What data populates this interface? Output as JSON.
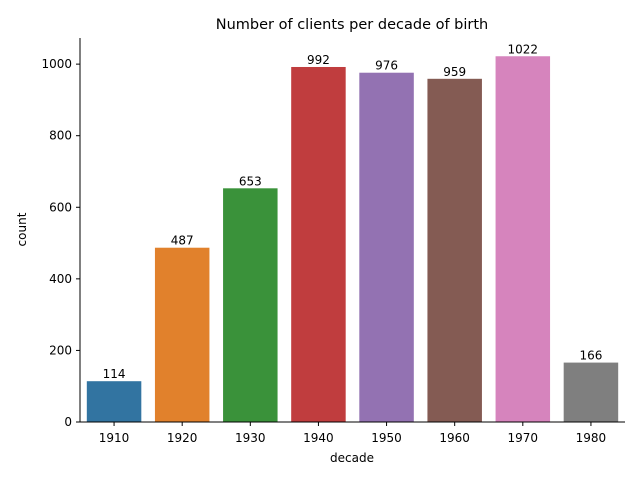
{
  "chart_data": {
    "type": "bar",
    "title": "Number of clients per decade of birth",
    "xlabel": "decade",
    "ylabel": "count",
    "categories": [
      "1910",
      "1920",
      "1930",
      "1940",
      "1950",
      "1960",
      "1970",
      "1980"
    ],
    "values": [
      114,
      487,
      653,
      992,
      976,
      959,
      1022,
      166
    ],
    "data_labels": [
      "114",
      "487",
      "653",
      "992",
      "976",
      "959",
      "1022",
      "166"
    ],
    "colors": [
      "#3274a1",
      "#e1812c",
      "#3a923a",
      "#c03d3e",
      "#9372b2",
      "#845b53",
      "#d684bd",
      "#7f7f7f"
    ],
    "yticks": [
      0,
      200,
      400,
      600,
      800,
      1000
    ],
    "ylim": [
      0,
      1073
    ],
    "grid": false,
    "legend": "none"
  }
}
